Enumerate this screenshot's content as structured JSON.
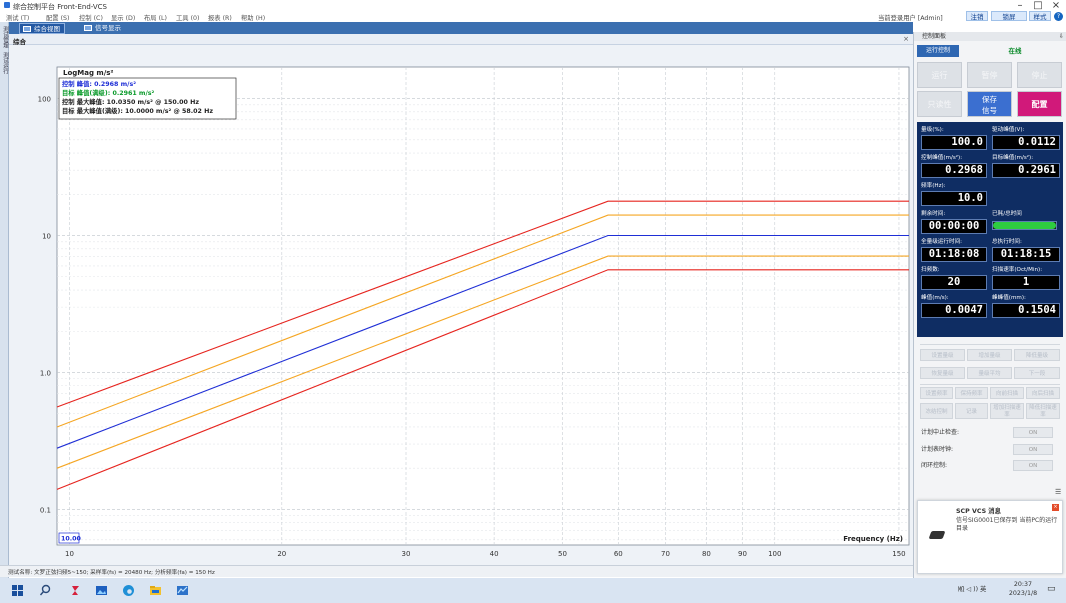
{
  "window": {
    "title": "综合控制平台 Front-End-VCS",
    "controls": [
      "–",
      "□",
      "×"
    ]
  },
  "menu": [
    "测试 (T)",
    "配置 (S)",
    "控制 (C)",
    "显示 (D)",
    "布局 (L)",
    "工具 (0)",
    "报表 (R)",
    "帮助 (H)"
  ],
  "user": {
    "info": "当前登录用户 [Admin]",
    "logout": "注销",
    "lock": "锁屏",
    "style": "样式",
    "help": "?"
  },
  "left_tabs": [
    "测试管理",
    "测试运行"
  ],
  "tabs": [
    {
      "label": "综合视图"
    },
    {
      "label": "信号显示"
    }
  ],
  "subtab": {
    "label": "综合",
    "close": "×"
  },
  "legend": {
    "line1": "控制 峰值: 0.2968 m/s²",
    "line2": "目标 峰值(满级): 0.2961 m/s²",
    "line3": "控制 最大峰值: 10.0350 m/s² @ 150.00 Hz",
    "line4": "目标 最大峰值(满级): 10.0000 m/s² @ 58.02 Hz"
  },
  "chart_data": {
    "type": "line",
    "ylabel": "LogMag m/s²",
    "xlabel": "Frequency (Hz)",
    "x_scale": "log",
    "y_scale": "log",
    "xlim": [
      9.6,
      155
    ],
    "ylim": [
      0.055,
      170
    ],
    "x_ticks": [
      "10",
      "20",
      "30",
      "40",
      "50",
      "60",
      "70",
      "80",
      "90",
      "100",
      "150"
    ],
    "x_tick_values": [
      10,
      20,
      30,
      40,
      50,
      60,
      70,
      80,
      90,
      100,
      150
    ],
    "y_ticks": [
      "0.1",
      "1.0",
      "10",
      "100"
    ],
    "y_tick_values": [
      0.1,
      1.0,
      10,
      100
    ],
    "x_readout": "10.00",
    "grid": true,
    "series": [
      {
        "color": "#e6251f",
        "x": [
          9.6,
          58.02,
          155
        ],
        "y": [
          0.56,
          17.8,
          17.8
        ]
      },
      {
        "color": "#f5a623",
        "x": [
          9.6,
          58.02,
          155
        ],
        "y": [
          0.4,
          14.1,
          14.1
        ]
      },
      {
        "color": "#1f2fd6",
        "x": [
          9.6,
          58.02,
          155
        ],
        "y": [
          0.28,
          10.0,
          10.0
        ]
      },
      {
        "color": "#f5a623",
        "x": [
          9.6,
          58.02,
          155
        ],
        "y": [
          0.2,
          7.08,
          7.08
        ]
      },
      {
        "color": "#e6251f",
        "x": [
          9.6,
          58.02,
          155
        ],
        "y": [
          0.14,
          5.62,
          5.62
        ]
      }
    ]
  },
  "status": {
    "text": "测试名称: 文罗正弦扫频5~150; 采样率(fs) = 20480 Hz; 分析频率(fa) = 150 Hz"
  },
  "panel": {
    "header": "控制面板",
    "pin": "⇩",
    "ctrl_tab": "运行控制",
    "online": "在线",
    "buttons": {
      "run": "运行",
      "pause": "暂停",
      "stop": "停止",
      "record": "只读性",
      "save": "保存\n信号",
      "config": "配置"
    },
    "params": {
      "level_label": "量级(%):",
      "level": "100.0",
      "drive_label": "驱动峰值(V):",
      "drive": "0.0112",
      "ctrl_label": "控制峰值(m/s²):",
      "ctrl": "0.2968",
      "target_label": "目标峰值(m/s²):",
      "target": "0.2961",
      "freq_label": "频率(Hz):",
      "freq": "10.0",
      "remain_label": "剩余时间:",
      "remain": "00:00:00",
      "done_label": "已耗/总时间",
      "done_progress": 1.0,
      "fullrun_label": "全量级运行时间:",
      "fullrun": "01:18:08",
      "totalrun_label": "总执行时间:",
      "totalrun": "01:18:15",
      "sweeps_label": "扫频数:",
      "sweeps": "20",
      "rate_label": "扫描速率(Oct/Min):",
      "rate": "1",
      "vel_label": "峰值(m/s):",
      "vel": "0.0047",
      "disp_label": "峰峰值(mm):",
      "disp": "0.1504"
    },
    "small_buttons": [
      [
        "设置量级",
        "增加量级",
        "降低量级"
      ],
      [
        "恢复量级",
        "量级平均",
        "下一段"
      ],
      [
        "设置频率",
        "保持频率",
        "向前扫描",
        "向后扫描"
      ],
      [
        "冻结控制",
        "记录",
        "增加扫描速率",
        "降低扫描速率"
      ]
    ],
    "config": [
      {
        "label": "计划中止检查:",
        "value": "ON"
      },
      {
        "label": "计划表时钟:",
        "value": "ON"
      },
      {
        "label": "闭环控制:",
        "value": "ON"
      }
    ]
  },
  "notify": {
    "title": "SCP VCS 消息",
    "body": "信号SIG0001已保存到 当前PC的运行目录",
    "close": "×"
  },
  "taskbar": {
    "tray": "㏁ ◁ )) 英",
    "time": "20:37",
    "date": "2023/1/8"
  }
}
